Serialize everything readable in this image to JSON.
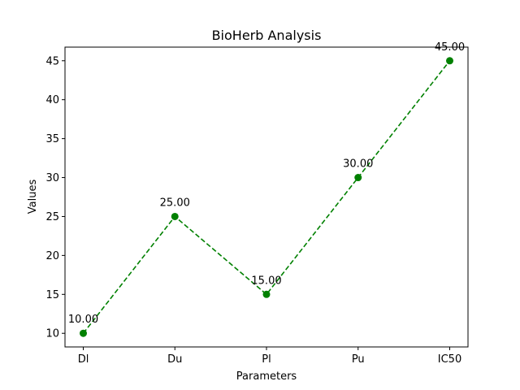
{
  "chart_data": {
    "type": "line",
    "title": "BioHerb Analysis",
    "xlabel": "Parameters",
    "ylabel": "Values",
    "categories": [
      "Dl",
      "Du",
      "Pl",
      "Pu",
      "IC50"
    ],
    "series": [
      {
        "values": [
          10,
          25,
          15,
          30,
          45
        ],
        "data_labels": [
          "10.00",
          "25.00",
          "15.00",
          "30.00",
          "45.00"
        ],
        "color": "#008000",
        "line_style": "dashed",
        "marker": "circle"
      }
    ],
    "ylim": [
      8.25,
      46.75
    ],
    "yticks": [
      10,
      15,
      20,
      25,
      30,
      35,
      40,
      45
    ],
    "grid": false
  }
}
